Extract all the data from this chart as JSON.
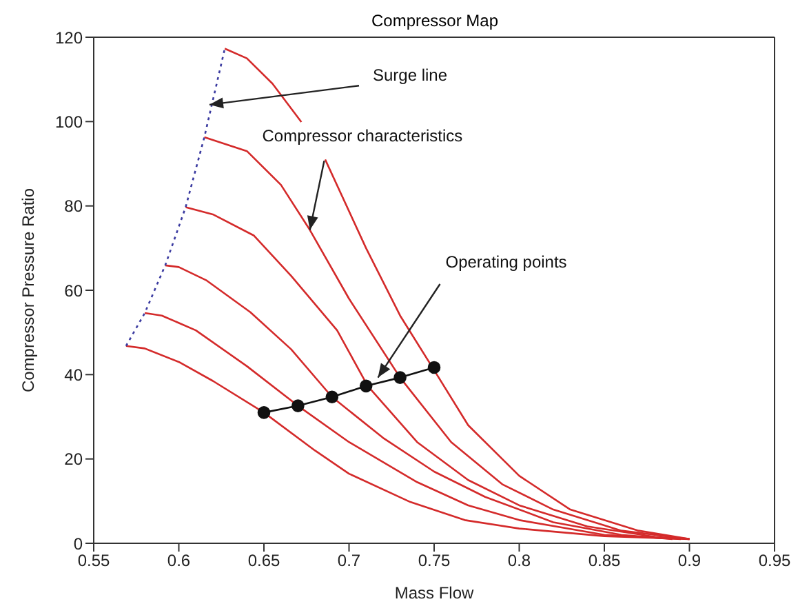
{
  "chart_data": {
    "type": "line",
    "title": "Compressor Map",
    "xlabel": "Mass Flow",
    "ylabel": "Compressor Pressure Ratio",
    "xlim": [
      0.55,
      0.95
    ],
    "xticks": [
      0.55,
      0.6,
      0.65,
      0.7,
      0.75,
      0.8,
      0.85,
      0.9,
      0.95
    ],
    "ylim": [
      0,
      120
    ],
    "yticks": [
      0,
      20,
      40,
      60,
      80,
      100,
      120
    ],
    "grid": false,
    "legend": false,
    "series": [
      {
        "color": "#d42a2a",
        "marker": "none",
        "line_style": "solid",
        "x": [
          0.569,
          0.58,
          0.6,
          0.62,
          0.65,
          0.68,
          0.7,
          0.736,
          0.768,
          0.8,
          0.85,
          0.9
        ],
        "values": [
          46.8,
          46.2,
          43,
          38.5,
          31,
          22,
          16.5,
          9.8,
          5.5,
          3.5,
          1.7,
          1
        ]
      },
      {
        "type": "line",
        "color": "#d42a2a",
        "marker": "none",
        "line_style": "solid",
        "x": [
          0.58,
          0.59,
          0.61,
          0.64,
          0.67,
          0.7,
          0.74,
          0.77,
          0.8,
          0.85,
          0.895
        ],
        "values": [
          54.6,
          54,
          50.5,
          42,
          32.6,
          24,
          14.5,
          9,
          5.5,
          2,
          1
        ]
      },
      {
        "type": "line",
        "color": "#d42a2a",
        "marker": "none",
        "line_style": "solid",
        "x": [
          0.592,
          0.6,
          0.616,
          0.642,
          0.666,
          0.69,
          0.72,
          0.75,
          0.78,
          0.82,
          0.86,
          0.89
        ],
        "values": [
          65.9,
          65.5,
          62.4,
          54.8,
          46,
          34.7,
          25,
          17,
          11,
          5,
          2,
          1
        ]
      },
      {
        "type": "line",
        "color": "#d42a2a",
        "marker": "none",
        "line_style": "solid",
        "x": [
          0.604,
          0.62,
          0.644,
          0.666,
          0.693,
          0.711,
          0.74,
          0.77,
          0.8,
          0.84,
          0.88,
          0.9
        ],
        "values": [
          79.7,
          78,
          73,
          63.4,
          50.5,
          37.3,
          24,
          15,
          9,
          4,
          1.5,
          1
        ]
      },
      {
        "type": "line",
        "color": "#d42a2a",
        "marker": "none",
        "line_style": "solid",
        "x": [
          0.615,
          0.64,
          0.66,
          0.677,
          0.7,
          0.73,
          0.76,
          0.79,
          0.82,
          0.86,
          0.9
        ],
        "values": [
          96.3,
          93,
          85,
          74.3,
          58,
          39.3,
          24,
          14,
          8,
          3,
          1
        ]
      },
      {
        "type": "line",
        "color": "#d42a2a",
        "marker": "none",
        "line_style": "solid",
        "x": [
          0.627,
          0.64,
          0.655,
          0.672,
          0.679,
          0.686,
          0.71,
          0.73,
          0.749,
          0.77,
          0.8,
          0.83,
          0.87,
          0.9
        ],
        "values": [
          117.3,
          115,
          109,
          99.9,
          null,
          91,
          70,
          54,
          41.7,
          28,
          16,
          8,
          3,
          1
        ]
      },
      {
        "type": "line",
        "color": "#3a3aa0",
        "marker": "none",
        "line_style": "dotted",
        "x": [
          0.569,
          0.58,
          0.592,
          0.604,
          0.615,
          0.627
        ],
        "values": [
          46.8,
          54.6,
          65.9,
          79.7,
          96.3,
          117.3
        ]
      },
      {
        "type": "line",
        "color": "#111111",
        "marker": "circle",
        "line_style": "solid",
        "x": [
          0.65,
          0.67,
          0.69,
          0.71,
          0.73,
          0.75
        ],
        "values": [
          31,
          32.6,
          34.7,
          37.3,
          39.3,
          41.7
        ]
      }
    ],
    "annotations": [
      {
        "text": "Surge line",
        "x": 0.618,
        "y": 104
      },
      {
        "text": "Compressor characteristics",
        "x": 0.677,
        "y": 74.3
      },
      {
        "text": "Operating points",
        "x": 0.717,
        "y": 39.3
      }
    ]
  }
}
